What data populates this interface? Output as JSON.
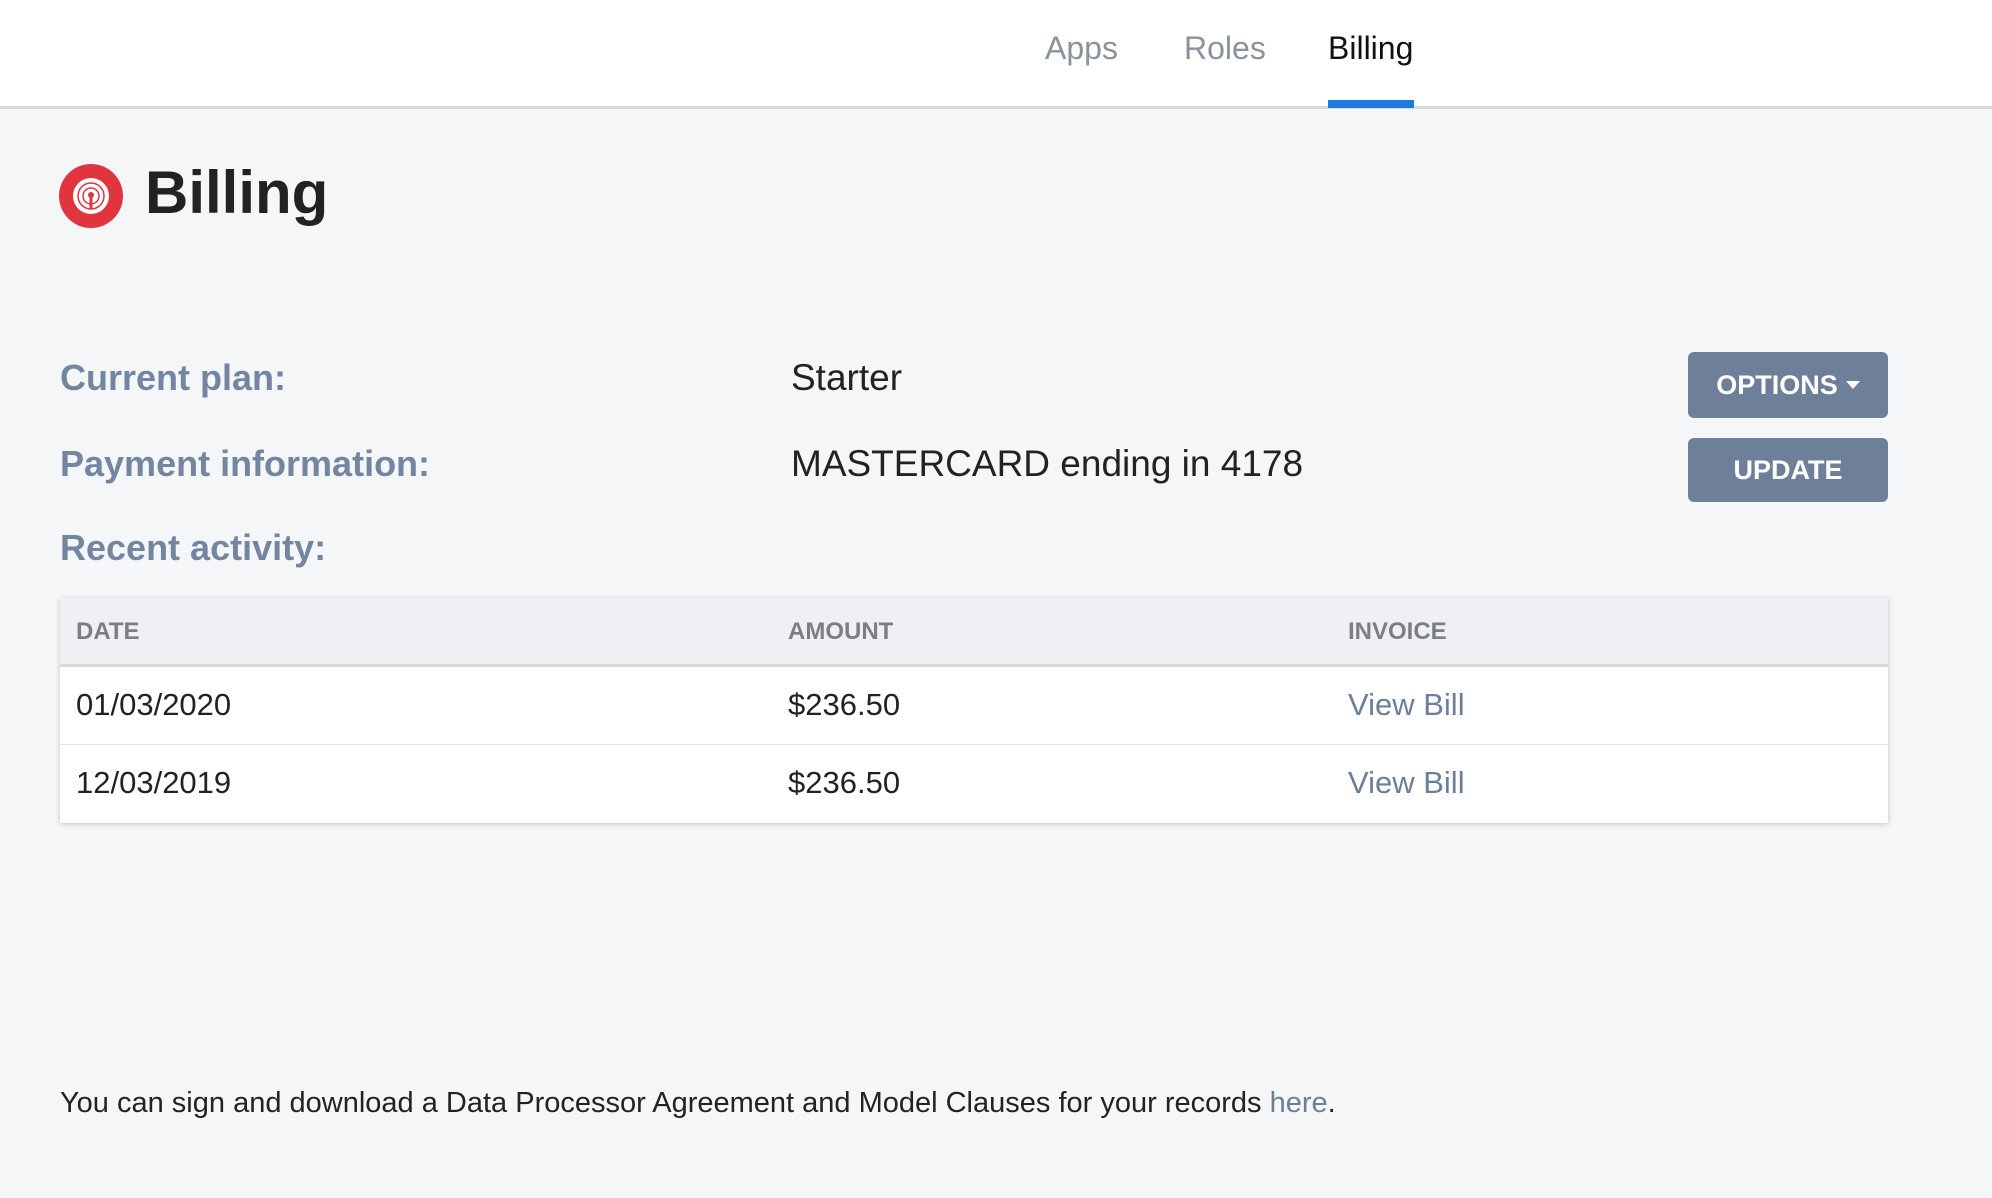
{
  "nav": {
    "tabs": [
      {
        "label": "Apps"
      },
      {
        "label": "Roles"
      },
      {
        "label": "Billing",
        "active": true
      }
    ]
  },
  "page": {
    "title": "Billing",
    "logo_icon": "broadcast-icon",
    "accent": "#e0343f"
  },
  "info": {
    "plan_label": "Current plan:",
    "plan_value": "Starter",
    "payment_label": "Payment information:",
    "payment_value": "MASTERCARD ending in 4178",
    "activity_label": "Recent activity:",
    "options_button": "OPTIONS",
    "update_button": "UPDATE"
  },
  "table": {
    "headers": [
      "DATE",
      "AMOUNT",
      "INVOICE"
    ],
    "rows": [
      {
        "date": "01/03/2020",
        "amount": "$236.50",
        "invoice": "View Bill"
      },
      {
        "date": "12/03/2019",
        "amount": "$236.50",
        "invoice": "View Bill"
      }
    ]
  },
  "footer": {
    "text": "You can sign and download a Data Processor Agreement and Model Clauses for your records ",
    "link": "here",
    "end": "."
  }
}
